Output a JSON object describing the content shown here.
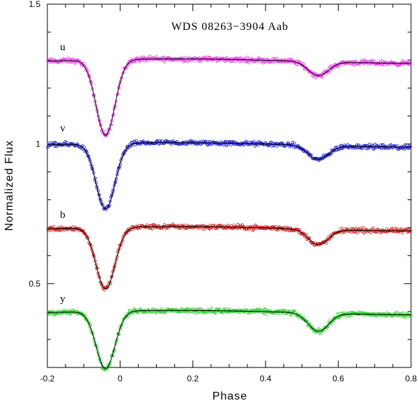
{
  "chart_data": {
    "type": "scatter",
    "title": "WDS 08263−3904 Aab",
    "xlabel": "Phase",
    "ylabel": "Normalized Flux",
    "xlim": [
      -0.2,
      0.8
    ],
    "ylim": [
      0.2,
      1.5
    ],
    "x_ticks": [
      -0.2,
      0,
      0.2,
      0.4,
      0.6,
      0.8
    ],
    "x_tick_labels": [
      "-0.2",
      "0",
      "0.2",
      "0.4",
      "0.6",
      "0.8"
    ],
    "y_ticks": [
      0.5,
      1,
      1.5
    ],
    "y_tick_labels": [
      "0.5",
      "1",
      "1.5"
    ],
    "grid": false,
    "legend": "none",
    "series": [
      {
        "name": "u",
        "color": "#e633e6",
        "baseline": 1.3,
        "primary_min": {
          "phase": -0.04,
          "flux": 1.03
        },
        "secondary_min": {
          "phase": 0.545,
          "flux": 1.25
        },
        "label_pos": {
          "phase": -0.165,
          "flux": 1.325
        }
      },
      {
        "name": "v",
        "color": "#1a1acc",
        "baseline": 1.0,
        "primary_min": {
          "phase": -0.04,
          "flux": 0.765
        },
        "secondary_min": {
          "phase": 0.545,
          "flux": 0.95
        },
        "label_pos": {
          "phase": -0.165,
          "flux": 1.035
        }
      },
      {
        "name": "b",
        "color": "#cc1a1a",
        "baseline": 0.7,
        "primary_min": {
          "phase": -0.04,
          "flux": 0.48
        },
        "secondary_min": {
          "phase": 0.545,
          "flux": 0.645
        },
        "label_pos": {
          "phase": -0.165,
          "flux": 0.725
        }
      },
      {
        "name": "y",
        "color": "#22cc22",
        "baseline": 0.4,
        "primary_min": {
          "phase": -0.04,
          "flux": 0.195
        },
        "secondary_min": {
          "phase": 0.545,
          "flux": 0.335
        },
        "label_pos": {
          "phase": -0.165,
          "flux": 0.425
        }
      }
    ]
  }
}
